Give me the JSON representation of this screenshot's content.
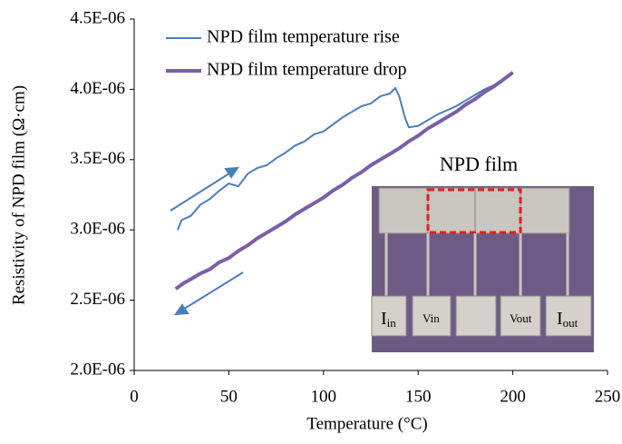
{
  "chart_data": {
    "type": "line",
    "x_label": "Temperature (°C)",
    "y_label": "Resistivity of NPD film (Ω·cm)",
    "xlim": [
      0,
      250
    ],
    "xticks": [
      0,
      50,
      100,
      150,
      200,
      250
    ],
    "ylim": [
      2e-06,
      4.5e-06
    ],
    "yticks": [
      {
        "value": 2e-06,
        "label": "2.0E-06"
      },
      {
        "value": 2.5e-06,
        "label": "2.5E-06"
      },
      {
        "value": 3e-06,
        "label": "3.0E-06"
      },
      {
        "value": 3.5e-06,
        "label": "3.5E-06"
      },
      {
        "value": 4e-06,
        "label": "4.0E-06"
      },
      {
        "value": 4.5e-06,
        "label": "4.5E-06"
      }
    ],
    "legend": "upper-left",
    "series": [
      {
        "name": "NPD film temperature rise",
        "color": "#4a7ebb",
        "x": [
          23,
          25,
          30,
          35,
          40,
          45,
          50,
          55,
          60,
          65,
          70,
          75,
          80,
          85,
          90,
          95,
          100,
          105,
          110,
          115,
          120,
          125,
          130,
          135,
          138,
          140,
          143,
          145,
          150,
          155,
          160,
          165,
          170,
          175,
          180,
          185,
          190,
          195,
          200
        ],
        "values": [
          3e-06,
          3.07e-06,
          3.1e-06,
          3.18e-06,
          3.22e-06,
          3.28e-06,
          3.33e-06,
          3.31e-06,
          3.4e-06,
          3.44e-06,
          3.46e-06,
          3.51e-06,
          3.55e-06,
          3.6e-06,
          3.63e-06,
          3.68e-06,
          3.7e-06,
          3.75e-06,
          3.8e-06,
          3.84e-06,
          3.88e-06,
          3.9e-06,
          3.95e-06,
          3.97e-06,
          4.01e-06,
          3.95e-06,
          3.8e-06,
          3.73e-06,
          3.74e-06,
          3.78e-06,
          3.82e-06,
          3.85e-06,
          3.88e-06,
          3.92e-06,
          3.96e-06,
          4e-06,
          4.03e-06,
          4.07e-06,
          4.12e-06
        ]
      },
      {
        "name": "NPD film temperature drop",
        "color": "#7b5fa8",
        "x": [
          22,
          26,
          30,
          35,
          40,
          45,
          50,
          55,
          60,
          65,
          70,
          75,
          80,
          85,
          90,
          95,
          100,
          105,
          110,
          115,
          120,
          125,
          130,
          135,
          140,
          145,
          150,
          155,
          160,
          165,
          170,
          175,
          180,
          185,
          190,
          195,
          200
        ],
        "values": [
          2.58e-06,
          2.62e-06,
          2.65e-06,
          2.69e-06,
          2.72e-06,
          2.77e-06,
          2.8e-06,
          2.85e-06,
          2.89e-06,
          2.94e-06,
          2.98e-06,
          3.02e-06,
          3.06e-06,
          3.11e-06,
          3.15e-06,
          3.19e-06,
          3.23e-06,
          3.28e-06,
          3.32e-06,
          3.37e-06,
          3.41e-06,
          3.46e-06,
          3.5e-06,
          3.54e-06,
          3.58e-06,
          3.63e-06,
          3.67e-06,
          3.72e-06,
          3.76e-06,
          3.8e-06,
          3.84e-06,
          3.89e-06,
          3.93e-06,
          3.98e-06,
          4.02e-06,
          4.07e-06,
          4.12e-06
        ]
      }
    ],
    "inset": {
      "title": "NPD film",
      "pads": [
        {
          "text": "I",
          "sub": "in"
        },
        {
          "text": "Vin"
        },
        {
          "text": "Vout"
        },
        {
          "text": "I",
          "sub": "out"
        }
      ]
    }
  }
}
